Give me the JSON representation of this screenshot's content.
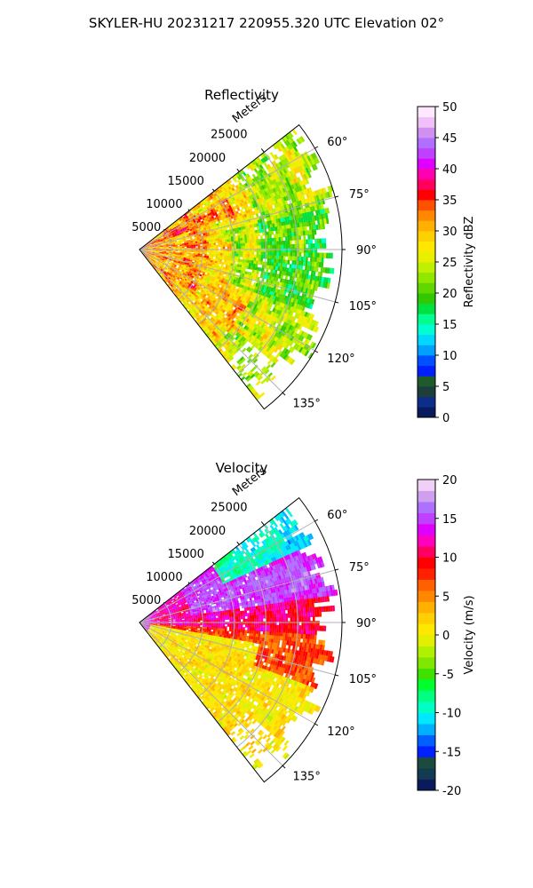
{
  "figure": {
    "suptitle": "SKYLER-HU  20231217  220955.320 UTC Elevation 02°"
  },
  "chart_data": [
    {
      "type": "heatmap",
      "projection": "polar-sector",
      "title": "Reflectivity",
      "range_label": "Meters",
      "range_ticks": [
        5000,
        10000,
        15000,
        20000,
        25000
      ],
      "range_max": 32000,
      "azimuth_range_deg": [
        52,
        142
      ],
      "azimuth_ticks_deg": [
        60,
        75,
        90,
        105,
        120,
        135
      ],
      "azimuth_tick_labels": [
        "60°",
        "75°",
        "90°",
        "105°",
        "120°",
        "135°"
      ],
      "grid": true,
      "colorbar": {
        "label": "Reflectivity dBZ",
        "min": 0,
        "max": 50,
        "ticks": [
          0,
          5,
          10,
          15,
          20,
          25,
          30,
          35,
          40,
          45,
          50
        ],
        "colors": [
          "#0a1a5c",
          "#0c2d8a",
          "#1c3f3c",
          "#1e5a2e",
          "#0020ff",
          "#0050ff",
          "#00a0ff",
          "#00d8ff",
          "#00ffd0",
          "#00ff90",
          "#00e040",
          "#30c800",
          "#60d800",
          "#90e800",
          "#c0f000",
          "#e8f000",
          "#ffe800",
          "#ffd000",
          "#ffb000",
          "#ff8800",
          "#ff5000",
          "#ff0000",
          "#ff0060",
          "#ff00b0",
          "#e000ff",
          "#c040ff",
          "#b070ff",
          "#d090f0",
          "#f0c0f8",
          "#ffe8ff"
        ]
      },
      "dominant_values_dbz": {
        "near_range": 30,
        "mid_range": 27,
        "far_range": 22,
        "embedded_cells": 35
      }
    },
    {
      "type": "heatmap",
      "projection": "polar-sector",
      "title": "Velocity",
      "range_label": "Meters",
      "range_ticks": [
        5000,
        10000,
        15000,
        20000,
        25000
      ],
      "range_max": 32000,
      "azimuth_range_deg": [
        52,
        142
      ],
      "azimuth_ticks_deg": [
        60,
        75,
        90,
        105,
        120,
        135
      ],
      "azimuth_tick_labels": [
        "60°",
        "75°",
        "90°",
        "105°",
        "120°",
        "135°"
      ],
      "grid": true,
      "colorbar": {
        "label": "Velocity (m/s)",
        "min": -20,
        "max": 20,
        "ticks": [
          -20,
          -15,
          -10,
          -5,
          0,
          5,
          10,
          15,
          20
        ],
        "colors": [
          "#0a1a5c",
          "#123a50",
          "#1c4a3c",
          "#0020ff",
          "#0060ff",
          "#00b0ff",
          "#00e8ff",
          "#00ffc0",
          "#00ff80",
          "#00ff30",
          "#40e000",
          "#80e800",
          "#b0f000",
          "#e0f000",
          "#ffe800",
          "#ffd000",
          "#ffb000",
          "#ff8800",
          "#ff6000",
          "#ff2000",
          "#ff0000",
          "#ff0060",
          "#ff00c0",
          "#e000ff",
          "#c040ff",
          "#b070ff",
          "#d0a0f0",
          "#f0d0f8"
        ]
      },
      "dominant_values_ms": {
        "north_sector": -8,
        "east_band": 12,
        "south_sector": 0,
        "edge_band": 6
      }
    }
  ]
}
